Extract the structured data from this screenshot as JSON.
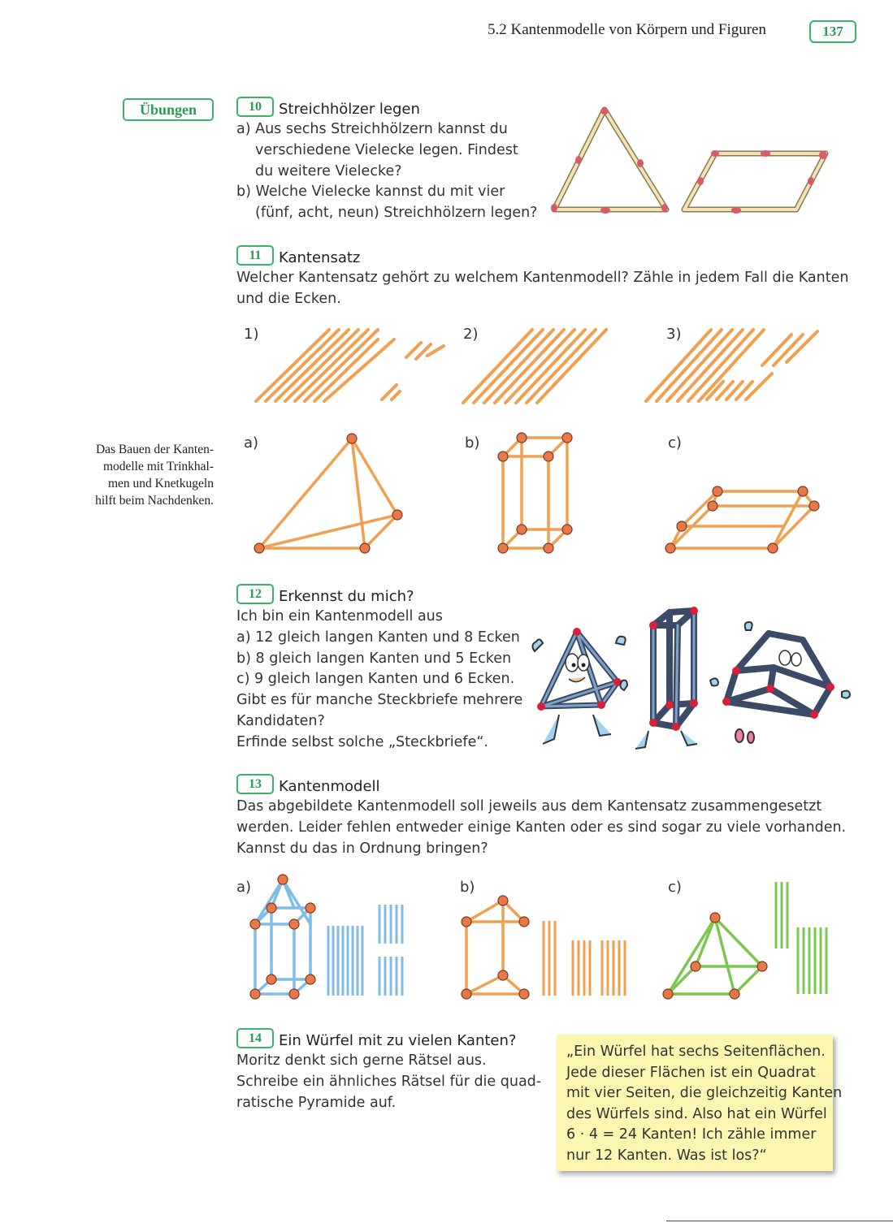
{
  "header": {
    "section_title": "5.2 Kantenmodelle von Körpern und Figuren",
    "page_number": "137"
  },
  "margin": {
    "tag": "Übungen",
    "note": [
      "Das Bauen der Kanten-",
      "modelle mit Trinkhal-",
      "men und Knetkugeln",
      "hilft beim Nachdenken."
    ]
  },
  "tasks": {
    "t10": {
      "number": "10",
      "title": "Streichhölzer legen",
      "lines": [
        "a) Aus sechs Streichhölzern kannst du",
        "verschiedene Vielecke legen. Findest",
        "du weitere Vielecke?",
        "b) Welche Vielecke kannst du mit vier",
        "(fünf, acht, neun) Streichhölzern legen?"
      ]
    },
    "t11": {
      "number": "11",
      "title": "Kantensatz",
      "lines": [
        "Welcher Kantensatz gehört zu welchem Kantenmodell? Zähle in jedem Fall die Kanten",
        "und die Ecken."
      ],
      "set_labels": [
        "1)",
        "2)",
        "3)"
      ],
      "model_labels": [
        "a)",
        "b)",
        "c)"
      ]
    },
    "t12": {
      "number": "12",
      "title": "Erkennst du mich?",
      "lines": [
        "Ich bin ein Kantenmodell aus",
        "a) 12 gleich langen Kanten und 8 Ecken",
        "b) 8 gleich langen Kanten und 5 Ecken",
        "c) 9 gleich langen Kanten und 6 Ecken.",
        "Gibt es für manche Steckbriefe mehrere",
        "Kandidaten?",
        "Erfinde selbst solche „Steckbriefe“."
      ]
    },
    "t13": {
      "number": "13",
      "title": "Kantenmodell",
      "lines": [
        "Das abgebildete Kantenmodell soll jeweils aus dem Kantensatz zusammengesetzt",
        "werden. Leider fehlen entweder einige Kanten oder es sind sogar zu viele vorhanden.",
        "Kannst du das in Ordnung bringen?"
      ],
      "labels": [
        "a)",
        "b)",
        "c)"
      ]
    },
    "t14": {
      "number": "14",
      "title": "Ein Würfel mit zu vielen Kanten?",
      "lines": [
        "Moritz denkt sich gerne Rätsel aus.",
        "Schreibe ein ähnliches Rätsel für die quad-",
        "ratische Pyramide auf."
      ],
      "note_lines": [
        "„Ein Würfel hat sechs Seitenflächen.",
        "Jede dieser Flächen ist ein Quadrat",
        "mit vier Seiten, die gleichzeitig Kanten",
        "des Würfels sind. Also hat ein Würfel",
        "6 · 4 = 24 Kanten! Ich zähle immer",
        "nur 12 Kanten. Was ist los?“"
      ]
    }
  },
  "colors": {
    "accent_green": "#3bb26a",
    "orange": "#f0a050",
    "blue": "#7fbde6",
    "green": "#7cc84e",
    "note_yellow": "#fdf6b1"
  }
}
